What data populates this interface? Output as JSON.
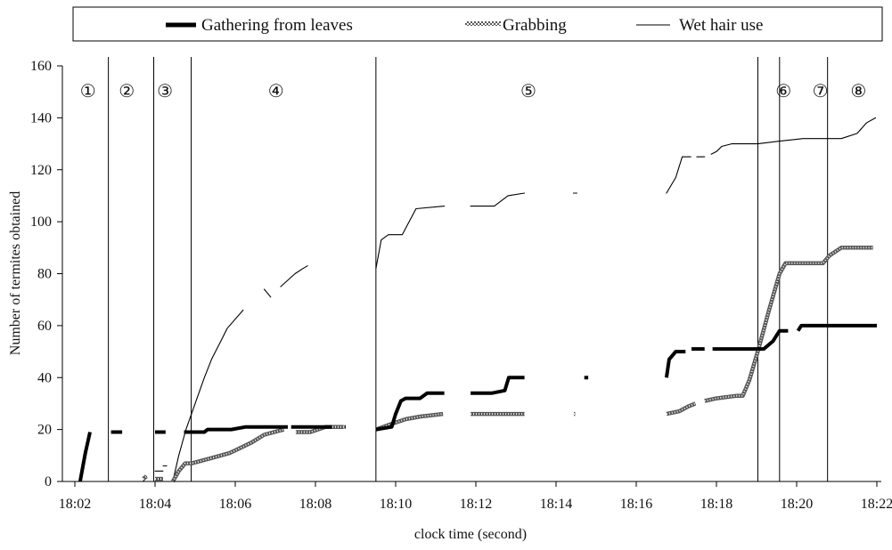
{
  "chart_data": {
    "type": "line",
    "xlabel": "clock time (second)",
    "ylabel": "Number of termites obtained",
    "xlim": [
      122,
      1342
    ],
    "ylim": [
      0,
      160
    ],
    "x_ticks": [
      {
        "value": 122,
        "label": "18:02"
      },
      {
        "value": 244,
        "label": "18:04"
      },
      {
        "value": 366,
        "label": "18:06"
      },
      {
        "value": 488,
        "label": "18:08"
      },
      {
        "value": 610,
        "label": "18:10"
      },
      {
        "value": 732,
        "label": "18:12"
      },
      {
        "value": 854,
        "label": "18:14"
      },
      {
        "value": 976,
        "label": "18:16"
      },
      {
        "value": 1098,
        "label": "18:18"
      },
      {
        "value": 1220,
        "label": "18:20"
      },
      {
        "value": 1342,
        "label": "18:22"
      }
    ],
    "y_ticks": [
      0,
      20,
      40,
      60,
      80,
      100,
      120,
      140,
      160
    ],
    "legend_position": "top",
    "phase_boundaries": [
      173,
      242,
      299,
      580,
      1161,
      1194,
      1267
    ],
    "phases": [
      {
        "label": "①",
        "x": 142
      },
      {
        "label": "②",
        "x": 201
      },
      {
        "label": "③",
        "x": 259
      },
      {
        "label": "④",
        "x": 428
      },
      {
        "label": "⑤",
        "x": 812
      },
      {
        "label": "⑥",
        "x": 1200
      },
      {
        "label": "⑦",
        "x": 1256
      },
      {
        "label": "⑧",
        "x": 1314
      }
    ],
    "series": [
      {
        "name": "Gathering from leaves",
        "color": "#000000",
        "style": "thick",
        "segments": [
          [
            [
              130,
              0
            ],
            [
              138,
              11
            ],
            [
              145,
              19
            ]
          ],
          [
            [
              177,
              19
            ],
            [
              194,
              19
            ]
          ],
          [
            [
              244,
              19
            ],
            [
              260,
              19
            ]
          ],
          [
            [
              288,
              19
            ],
            [
              319,
              19
            ],
            [
              324,
              20
            ],
            [
              360,
              20
            ],
            [
              382,
              21
            ],
            [
              446,
              21
            ]
          ],
          [
            [
              451,
              21
            ],
            [
              476,
              21
            ],
            [
              501,
              21
            ],
            [
              513,
              21
            ]
          ],
          [
            [
              532,
              21
            ],
            [
              534,
              21
            ]
          ],
          [
            [
              580,
              20
            ],
            [
              604,
              21
            ],
            [
              610,
              26
            ],
            [
              618,
              31
            ],
            [
              625,
              32
            ],
            [
              647,
              32
            ],
            [
              658,
              34
            ],
            [
              684,
              34
            ]
          ],
          [
            [
              724,
              34
            ],
            [
              756,
              34
            ],
            [
              776,
              35
            ],
            [
              782,
              40
            ],
            [
              806,
              40
            ]
          ],
          [
            [
              897,
              40
            ],
            [
              903,
              40
            ]
          ],
          [
            [
              1022,
              40
            ],
            [
              1026,
              47
            ],
            [
              1036,
              50
            ],
            [
              1051,
              50
            ]
          ],
          [
            [
              1060,
              51
            ],
            [
              1080,
              51
            ]
          ],
          [
            [
              1092,
              51
            ],
            [
              1128,
              51
            ],
            [
              1140,
              51
            ],
            [
              1161,
              51
            ],
            [
              1170,
              51
            ],
            [
              1184,
              54
            ],
            [
              1194,
              58
            ],
            [
              1207,
              58
            ]
          ],
          [
            [
              1222,
              58
            ],
            [
              1227,
              60
            ],
            [
              1342,
              60
            ]
          ]
        ]
      },
      {
        "name": "Grabbing",
        "color": "#666666",
        "style": "hatched",
        "segments": [
          [
            [
              226,
              1
            ],
            [
              231,
              2
            ]
          ],
          [
            [
              244,
              1
            ],
            [
              256,
              1
            ]
          ],
          [
            [
              271,
              0
            ],
            [
              280,
              4
            ],
            [
              290,
              7
            ],
            [
              300,
              7
            ],
            [
              330,
              9
            ],
            [
              358,
              11
            ],
            [
              391,
              15
            ],
            [
              410,
              18
            ],
            [
              440,
              20
            ]
          ],
          [
            [
              458,
              19
            ],
            [
              480,
              19
            ],
            [
              503,
              21
            ],
            [
              531,
              21
            ]
          ],
          [
            [
              580,
              20
            ],
            [
              602,
              22
            ],
            [
              626,
              24
            ],
            [
              648,
              25
            ],
            [
              682,
              26
            ]
          ],
          [
            [
              724,
              26
            ],
            [
              806,
              26
            ]
          ],
          [
            [
              881,
              26
            ],
            [
              883,
              26
            ]
          ],
          [
            [
              1022,
              26
            ],
            [
              1041,
              27
            ],
            [
              1056,
              29
            ],
            [
              1066,
              30
            ]
          ],
          [
            [
              1080,
              31
            ],
            [
              1098,
              32
            ],
            [
              1129,
              33
            ],
            [
              1138,
              33
            ],
            [
              1148,
              39
            ],
            [
              1163,
              52
            ],
            [
              1178,
              66
            ],
            [
              1194,
              80
            ],
            [
              1203,
              84
            ],
            [
              1239,
              84
            ],
            [
              1260,
              84
            ],
            [
              1270,
              87
            ],
            [
              1288,
              90
            ],
            [
              1336,
              90
            ]
          ]
        ]
      },
      {
        "name": "Wet hair use",
        "color": "#000000",
        "style": "thin",
        "segments": [
          [
            [
              226,
              0
            ],
            [
              231,
              2
            ]
          ],
          [
            [
              244,
              4
            ],
            [
              256,
              4
            ]
          ],
          [
            [
              259,
              6
            ]
          ],
          [
            [
              271,
              0
            ],
            [
              280,
              10
            ],
            [
              291,
              20
            ],
            [
              305,
              30
            ],
            [
              319,
              40
            ],
            [
              330,
              47
            ],
            [
              342,
              53
            ],
            [
              354,
              59
            ],
            [
              378,
              66
            ]
          ],
          [
            [
              410,
              74
            ],
            [
              420,
              71
            ]
          ],
          [
            [
              435,
              75
            ],
            [
              457,
              80
            ],
            [
              469,
              82
            ],
            [
              476,
              83
            ]
          ],
          [
            [
              580,
              82
            ],
            [
              588,
              93
            ],
            [
              599,
              95
            ],
            [
              620,
              95
            ],
            [
              641,
              105
            ],
            [
              684,
              106
            ]
          ],
          [
            [
              724,
              106
            ],
            [
              760,
              106
            ],
            [
              781,
              110
            ],
            [
              806,
              111
            ]
          ],
          [
            [
              883,
              111
            ]
          ],
          [
            [
              1022,
              111
            ],
            [
              1036,
              117
            ],
            [
              1046,
              125
            ],
            [
              1059,
              125
            ]
          ],
          [
            [
              1068,
              125
            ],
            [
              1080,
              125
            ]
          ],
          [
            [
              1090,
              126
            ],
            [
              1098,
              127
            ],
            [
              1106,
              129
            ],
            [
              1121,
              130
            ],
            [
              1161,
              130
            ],
            [
              1194,
              131
            ],
            [
              1230,
              132
            ],
            [
              1260,
              132
            ],
            [
              1288,
              132
            ],
            [
              1312,
              134
            ],
            [
              1326,
              138
            ],
            [
              1340,
              140
            ]
          ]
        ]
      }
    ]
  }
}
